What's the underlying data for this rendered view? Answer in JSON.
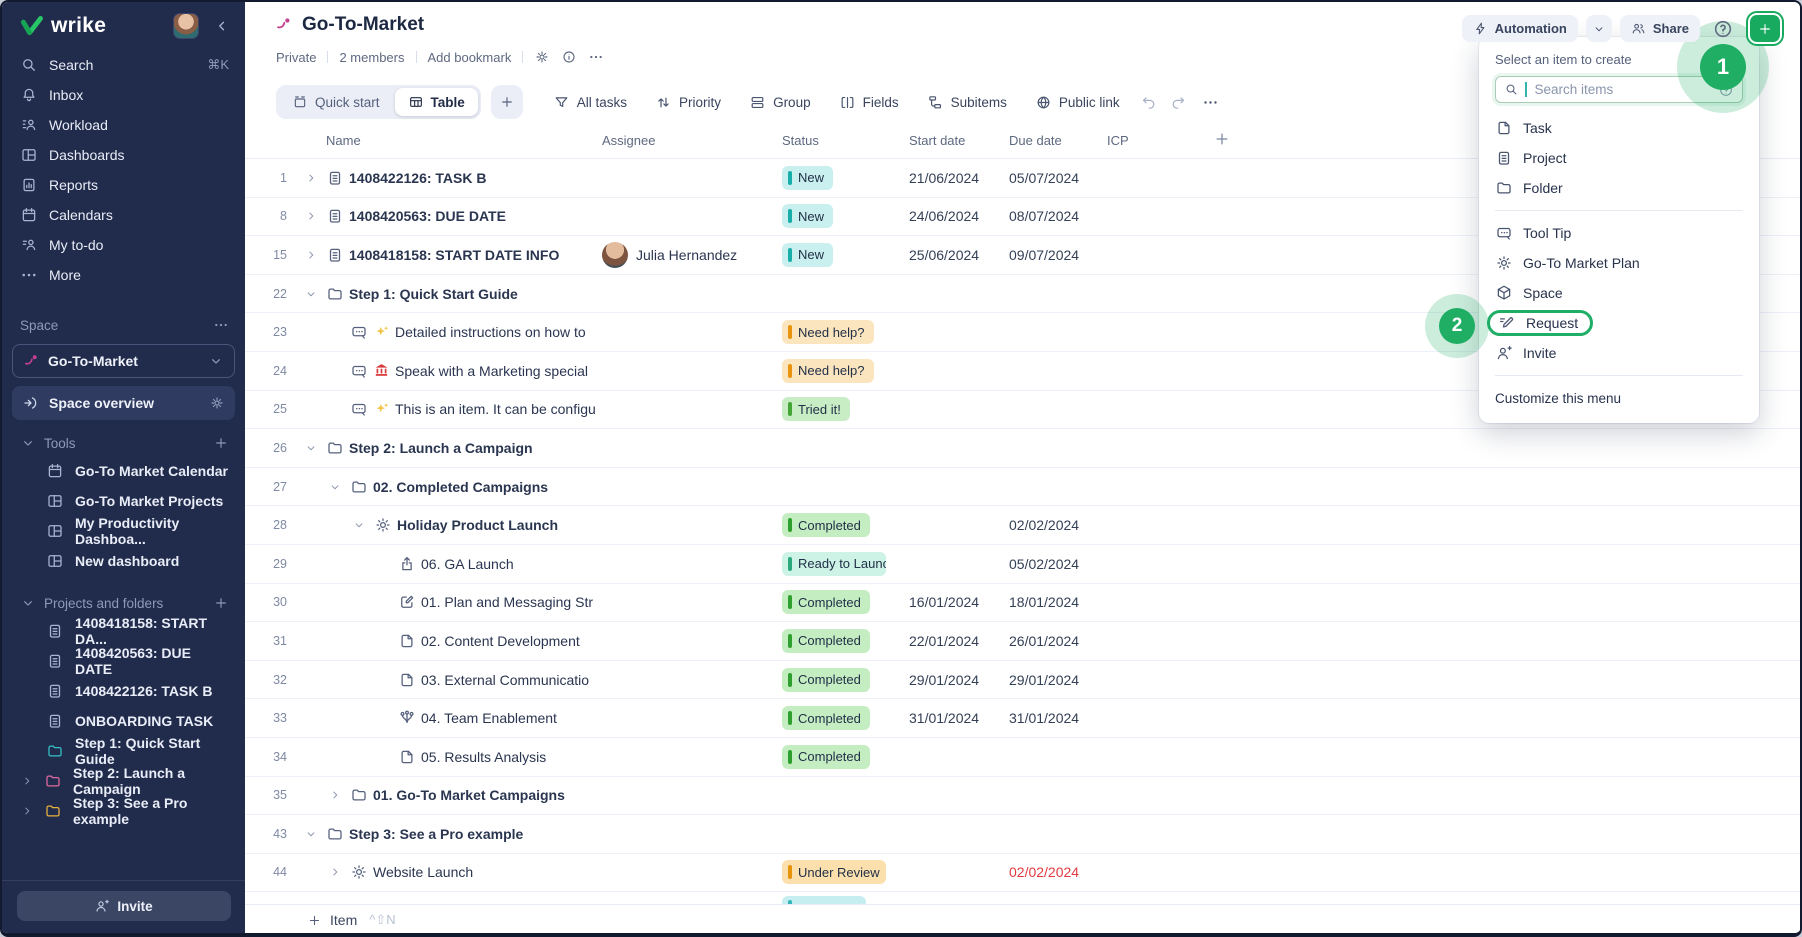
{
  "sidebar": {
    "logo_text": "wrike",
    "nav": [
      {
        "label": "Search",
        "icon": "search",
        "shortcut": "⌘K"
      },
      {
        "label": "Inbox",
        "icon": "bell"
      },
      {
        "label": "Workload",
        "icon": "workload"
      },
      {
        "label": "Dashboards",
        "icon": "dash"
      },
      {
        "label": "Reports",
        "icon": "report"
      },
      {
        "label": "Calendars",
        "icon": "calendar"
      },
      {
        "label": "My to-do",
        "icon": "todo"
      },
      {
        "label": "More",
        "icon": "dots"
      }
    ],
    "space_label": "Space",
    "space_selector": "Go-To-Market",
    "space_overview": "Space overview",
    "tools_label": "Tools",
    "tools": [
      "Go-To Market Calendar",
      "Go-To Market Projects",
      "My Productivity Dashboa...",
      "New dashboard"
    ],
    "projects_label": "Projects and folders",
    "projects": [
      {
        "label": "1408418158: START DA...",
        "icon": "clip",
        "color": "#aab5d1",
        "chevron": false
      },
      {
        "label": "1408420563: DUE DATE",
        "icon": "clip",
        "color": "#aab5d1",
        "chevron": false
      },
      {
        "label": "1408422126: TASK B",
        "icon": "clip",
        "color": "#aab5d1",
        "chevron": false
      },
      {
        "label": "ONBOARDING TASK",
        "icon": "clip",
        "color": "#aab5d1",
        "chevron": false
      },
      {
        "label": "Step 1: Quick Start Guide",
        "icon": "folder",
        "color": "#35c1c5",
        "chevron": false
      },
      {
        "label": "Step 2: Launch a Campaign",
        "icon": "folder",
        "color": "#df6a9e",
        "chevron": true
      },
      {
        "label": "Step 3: See a Pro example",
        "icon": "folder",
        "color": "#e7b13e",
        "chevron": true
      }
    ],
    "invite_label": "Invite"
  },
  "header": {
    "title": "Go-To-Market",
    "privacy": "Private",
    "members": "2 members",
    "add_bookmark": "Add bookmark"
  },
  "toolbar": {
    "quick_start": "Quick start",
    "table": "Table",
    "filters": [
      "All tasks",
      "Priority",
      "Group",
      "Fields",
      "Subitems",
      "Public link"
    ]
  },
  "topbar": {
    "automation": "Automation",
    "share": "Share"
  },
  "table": {
    "columns": [
      "Name",
      "Assignee",
      "Status",
      "Start date",
      "Due date",
      "ICP"
    ],
    "rows": [
      {
        "num": "1",
        "indent": 0,
        "chevron": "right",
        "icon": "clip",
        "name": "1408422126: TASK B",
        "bold": true,
        "assignee": null,
        "status": {
          "label": "New",
          "type": "new"
        },
        "start": "21/06/2024",
        "due": "05/07/2024",
        "due_red": false
      },
      {
        "num": "8",
        "indent": 0,
        "chevron": "right",
        "icon": "clip",
        "name": "1408420563: DUE DATE",
        "bold": true,
        "assignee": null,
        "status": {
          "label": "New",
          "type": "new"
        },
        "start": "24/06/2024",
        "due": "08/07/2024",
        "due_red": false
      },
      {
        "num": "15",
        "indent": 0,
        "chevron": "right",
        "icon": "clip",
        "name": "1408418158: START DATE INFO",
        "bold": true,
        "assignee": "Julia Hernandez",
        "status": {
          "label": "New",
          "type": "new"
        },
        "start": "25/06/2024",
        "due": "09/07/2024",
        "due_red": false
      },
      {
        "num": "22",
        "indent": 0,
        "chevron": "down",
        "icon": "folder",
        "name": "Step 1: Quick Start Guide",
        "bold": true,
        "assignee": null,
        "status": null,
        "start": "",
        "due": "",
        "due_red": false
      },
      {
        "num": "23",
        "indent": 1,
        "chevron": null,
        "icon": "tooltip",
        "emoji": "sparkles",
        "name": "Detailed instructions on how to",
        "bold": false,
        "assignee": null,
        "status": {
          "label": "Need help?",
          "type": "help"
        },
        "start": "",
        "due": "",
        "due_red": false
      },
      {
        "num": "24",
        "indent": 1,
        "chevron": null,
        "icon": "tooltip",
        "emoji": "bank",
        "name": "Speak with a Marketing special",
        "bold": false,
        "assignee": null,
        "status": {
          "label": "Need help?",
          "type": "help"
        },
        "start": "",
        "due": "",
        "due_red": false
      },
      {
        "num": "25",
        "indent": 1,
        "chevron": null,
        "icon": "tooltip",
        "emoji": "sparkles",
        "name": "This is an item. It can be configu",
        "bold": false,
        "assignee": null,
        "status": {
          "label": "Tried it!",
          "type": "tried"
        },
        "start": "",
        "due": "",
        "due_red": false
      },
      {
        "num": "26",
        "indent": 0,
        "chevron": "down",
        "icon": "folder",
        "name": "Step 2: Launch a Campaign",
        "bold": true,
        "assignee": null,
        "status": null,
        "start": "",
        "due": "",
        "due_red": false
      },
      {
        "num": "27",
        "indent": 1,
        "chevron": "down",
        "icon": "folder",
        "name": "02. Completed Campaigns",
        "bold": true,
        "assignee": null,
        "status": null,
        "start": "",
        "due": "",
        "due_red": false
      },
      {
        "num": "28",
        "indent": 2,
        "chevron": "down",
        "icon": "sun",
        "name": "Holiday Product Launch",
        "bold": true,
        "assignee": null,
        "status": {
          "label": "Completed",
          "type": "done"
        },
        "start": "",
        "due": "02/02/2024",
        "due_red": false
      },
      {
        "num": "29",
        "indent": 3,
        "chevron": null,
        "icon": "launch",
        "name": "06. GA Launch",
        "bold": false,
        "assignee": null,
        "status": {
          "label": "Ready to Launch",
          "type": "ready"
        },
        "start": "",
        "due": "05/02/2024",
        "due_red": false
      },
      {
        "num": "30",
        "indent": 3,
        "chevron": null,
        "icon": "edit",
        "name": "01. Plan and Messaging Str",
        "bold": false,
        "assignee": null,
        "status": {
          "label": "Completed",
          "type": "done"
        },
        "start": "16/01/2024",
        "due": "18/01/2024",
        "due_red": false
      },
      {
        "num": "31",
        "indent": 3,
        "chevron": null,
        "icon": "page",
        "name": "02. Content Development",
        "bold": false,
        "assignee": null,
        "status": {
          "label": "Completed",
          "type": "done"
        },
        "start": "22/01/2024",
        "due": "26/01/2024",
        "due_red": false
      },
      {
        "num": "32",
        "indent": 3,
        "chevron": null,
        "icon": "page",
        "name": "03. External Communicatio",
        "bold": false,
        "assignee": null,
        "status": {
          "label": "Completed",
          "type": "done"
        },
        "start": "29/01/2024",
        "due": "29/01/2024",
        "due_red": false
      },
      {
        "num": "33",
        "indent": 3,
        "chevron": null,
        "icon": "team",
        "name": "04. Team Enablement",
        "bold": false,
        "assignee": null,
        "status": {
          "label": "Completed",
          "type": "done"
        },
        "start": "31/01/2024",
        "due": "31/01/2024",
        "due_red": false
      },
      {
        "num": "34",
        "indent": 3,
        "chevron": null,
        "icon": "page",
        "name": "05. Results Analysis",
        "bold": false,
        "assignee": null,
        "status": {
          "label": "Completed",
          "type": "done"
        },
        "start": "",
        "due": "",
        "due_red": false
      },
      {
        "num": "35",
        "indent": 1,
        "chevron": "right",
        "icon": "folder",
        "name": "01. Go-To Market Campaigns",
        "bold": true,
        "assignee": null,
        "status": null,
        "start": "",
        "due": "",
        "due_red": false
      },
      {
        "num": "43",
        "indent": 0,
        "chevron": "down",
        "icon": "folder",
        "name": "Step 3: See a Pro example",
        "bold": true,
        "assignee": null,
        "status": null,
        "start": "",
        "due": "",
        "due_red": false
      },
      {
        "num": "44",
        "indent": 1,
        "chevron": "right",
        "icon": "sun",
        "name": "Website Launch",
        "bold": false,
        "assignee": null,
        "status": {
          "label": "Under Review",
          "type": "review"
        },
        "start": "",
        "due": "02/02/2024",
        "due_red": true
      }
    ]
  },
  "footer": {
    "add_item": "Item",
    "shortcut": "^⇧N"
  },
  "create_menu": {
    "title": "Select an item to create",
    "search_placeholder": "Search items",
    "items": [
      {
        "label": "Task",
        "icon": "page"
      },
      {
        "label": "Project",
        "icon": "clip"
      },
      {
        "label": "Folder",
        "icon": "folder"
      },
      {
        "divider": true
      },
      {
        "label": "Tool Tip",
        "icon": "tooltip"
      },
      {
        "label": "Go-To Market Plan",
        "icon": "sun"
      },
      {
        "label": "Space",
        "icon": "cube"
      },
      {
        "label": "Request",
        "icon": "request",
        "highlighted": true
      },
      {
        "label": "Invite",
        "icon": "invite"
      },
      {
        "divider": true
      },
      {
        "label": "Customize this menu",
        "icon": null,
        "small": true
      }
    ]
  },
  "annotations": {
    "badge_one": "1",
    "badge_two": "2"
  },
  "colors": {
    "accent_green": "#18ab5f",
    "sidebar_bg": "#212c4c",
    "space_magenta": "#c2418f",
    "status_new_bg": "#c9f0ee",
    "status_new_bar": "#18aea9",
    "status_help_bg": "#fbe5be",
    "status_help_bar": "#e9940f",
    "status_done_bg": "#c5edc2",
    "status_done_bar": "#2fa02f",
    "status_ready_bg": "#cdf2e6",
    "status_ready_bar": "#2ba87c",
    "status_review_bg": "#fbdfad",
    "status_review_bar": "#e8930c",
    "overdue_red": "#e23b40",
    "folder_step1": "#35c1c5",
    "folder_step2": "#df6a9e",
    "folder_step3": "#e7b13e"
  }
}
